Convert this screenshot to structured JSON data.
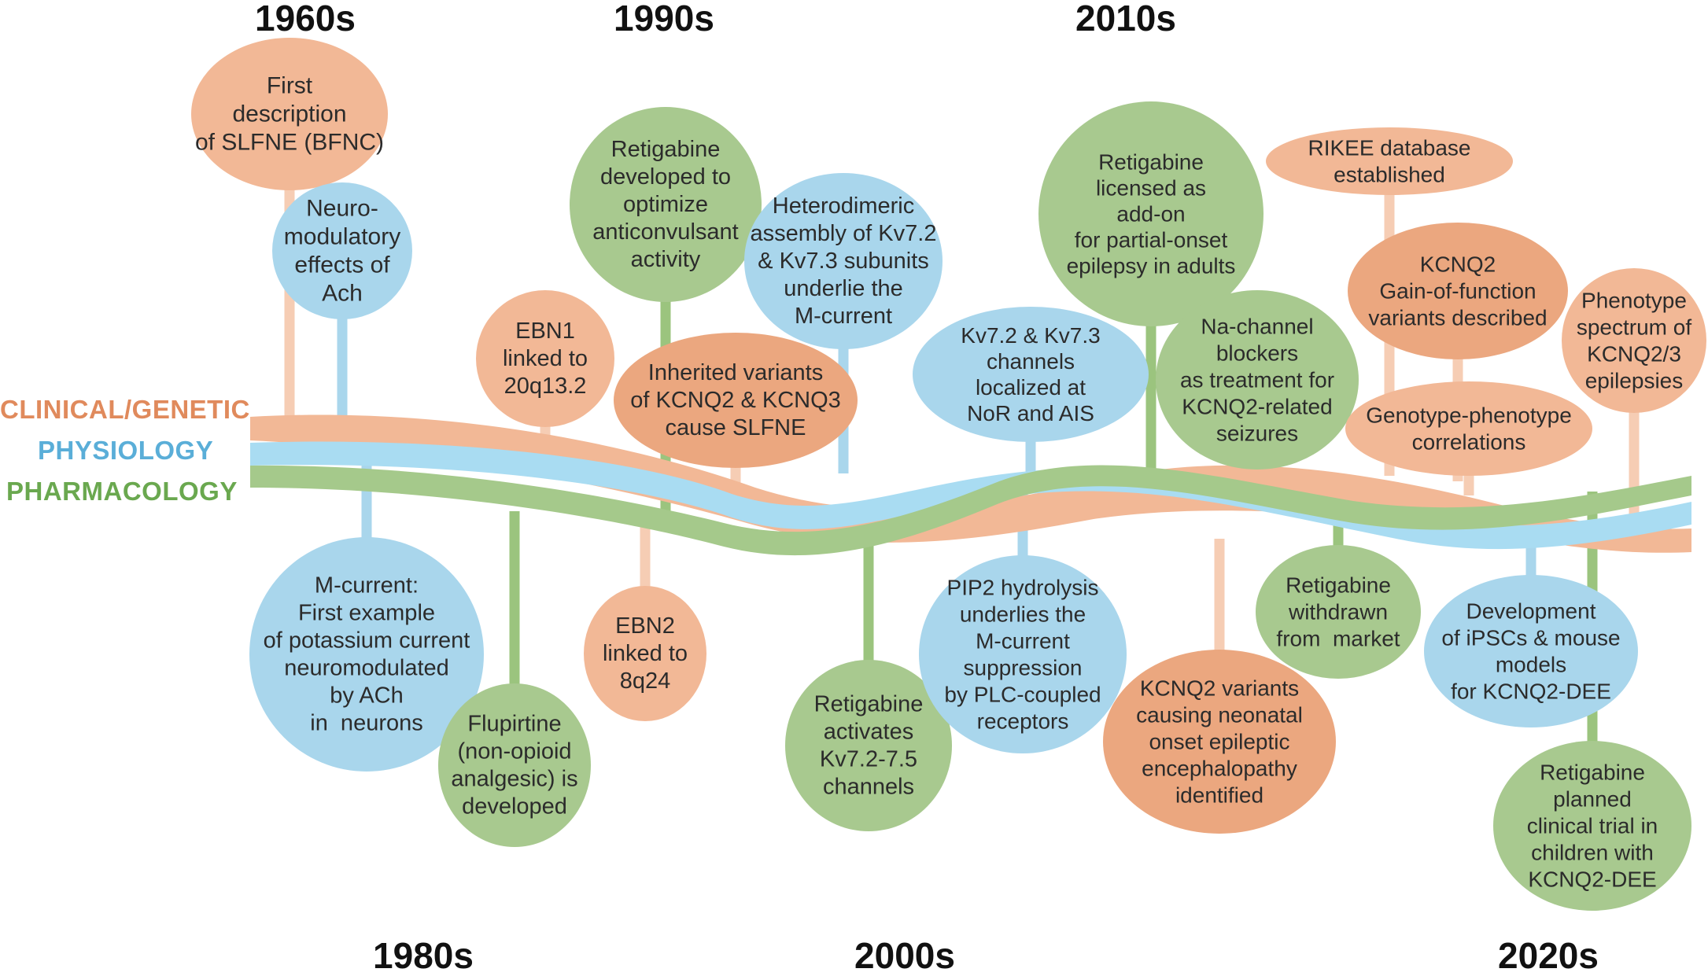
{
  "decades": {
    "d1960": "1960s",
    "d1980": "1980s",
    "d1990": "1990s",
    "d2000": "2000s",
    "d2010": "2010s",
    "d2020": "2020s"
  },
  "bands": {
    "clinical": "CLINICAL/GENETIC",
    "physiology": "PHYSIOLOGY",
    "pharmacology": "PHARMACOLOGY"
  },
  "colors": {
    "clinical_fill": "#f2b896",
    "clinical_dark": "#eba77f",
    "clinical_text": "#e08a5c",
    "physiology_fill": "#a9d6ec",
    "physiology_text": "#5aaed8",
    "pharmacology_fill": "#a8c98f",
    "pharmacology_text": "#6aa84f",
    "ribbon_clinical": "#f2b896",
    "ribbon_physiology": "#a9dcf2",
    "ribbon_pharmacology": "#a5c98b",
    "stem_clinical": "#f6cdb4",
    "stem_physiology": "#a9d6ec",
    "stem_pharmacology": "#9bc47e"
  },
  "events": [
    {
      "id": "first-description-slfne",
      "category": "clinical",
      "lines": [
        "First",
        "description",
        "of SLFNE (BFNC)"
      ]
    },
    {
      "id": "neuromodulatory-ach",
      "category": "physiology",
      "lines": [
        "Neuro-",
        "modulatory",
        "effects of",
        "Ach"
      ]
    },
    {
      "id": "m-current-first-example",
      "category": "physiology",
      "lines": [
        "M-current:",
        "First example",
        "of potassium current",
        "neuromodulated",
        "by ACh",
        "in  neurons"
      ]
    },
    {
      "id": "flupirtine-developed",
      "category": "pharmacology",
      "lines": [
        "Flupirtine",
        "(non-opioid",
        "analgesic) is",
        "developed"
      ]
    },
    {
      "id": "ebn1-linked",
      "category": "clinical",
      "lines": [
        "EBN1",
        "linked to",
        "20q13.2"
      ]
    },
    {
      "id": "retigabine-developed",
      "category": "pharmacology",
      "lines": [
        "Retigabine",
        "developed to",
        "optimize",
        "anticonvulsant",
        "activity"
      ]
    },
    {
      "id": "inherited-variants-slfne",
      "category": "clinical",
      "lines": [
        "Inherited variants",
        "of KCNQ2 & KCNQ3",
        "cause SLFNE"
      ]
    },
    {
      "id": "ebn2-linked",
      "category": "clinical",
      "lines": [
        "EBN2",
        "linked to",
        "8q24"
      ]
    },
    {
      "id": "heterodimeric-assembly",
      "category": "physiology",
      "lines": [
        "Heterodimeric",
        "assembly of Kv7.2",
        "& Kv7.3 subunits",
        "underlie the",
        "M-current"
      ]
    },
    {
      "id": "retigabine-activates",
      "category": "pharmacology",
      "lines": [
        "Retigabine",
        "activates",
        "Kv7.2-7.5",
        "channels"
      ]
    },
    {
      "id": "kv-channels-localized",
      "category": "physiology",
      "lines": [
        "Kv7.2 & Kv7.3",
        "channels",
        "localized at",
        "NoR and AIS"
      ]
    },
    {
      "id": "pip2-hydrolysis",
      "category": "physiology",
      "lines": [
        "PIP2 hydrolysis",
        "underlies the",
        "M-current",
        "suppression",
        "by PLC-coupled",
        "receptors"
      ]
    },
    {
      "id": "retigabine-licensed",
      "category": "pharmacology",
      "lines": [
        "Retigabine",
        "licensed as",
        "add-on",
        "for partial-onset",
        "epilepsy in adults"
      ]
    },
    {
      "id": "na-channel-blockers",
      "category": "pharmacology",
      "lines": [
        "Na-channel",
        "blockers",
        "as treatment for",
        "KCNQ2-related",
        "seizures"
      ]
    },
    {
      "id": "kcnq2-neonatal-variants",
      "category": "clinical",
      "lines": [
        "KCNQ2 variants",
        "causing neonatal",
        "onset epileptic",
        "encephalopathy",
        "identified"
      ]
    },
    {
      "id": "retigabine-withdrawn",
      "category": "pharmacology",
      "lines": [
        "Retigabine",
        "withdrawn",
        "from  market"
      ]
    },
    {
      "id": "rikee-database",
      "category": "clinical",
      "lines": [
        "RIKEE database",
        "established"
      ]
    },
    {
      "id": "kcnq2-gof-variants",
      "category": "clinical",
      "lines": [
        "KCNQ2",
        "Gain-of-function",
        "variants described"
      ]
    },
    {
      "id": "genotype-phenotype",
      "category": "clinical",
      "lines": [
        "Genotype-phenotype",
        "correlations"
      ]
    },
    {
      "id": "phenotype-spectrum",
      "category": "clinical",
      "lines": [
        "Phenotype",
        "spectrum of",
        "KCNQ2/3",
        "epilepsies"
      ]
    },
    {
      "id": "ipsc-mouse-models",
      "category": "physiology",
      "lines": [
        "Development",
        "of iPSCs & mouse",
        "models",
        "for KCNQ2-DEE"
      ]
    },
    {
      "id": "retigabine-clinical-trial",
      "category": "pharmacology",
      "lines": [
        "Retigabine",
        "planned",
        "clinical trial in",
        "children with",
        "KCNQ2-DEE"
      ]
    }
  ]
}
